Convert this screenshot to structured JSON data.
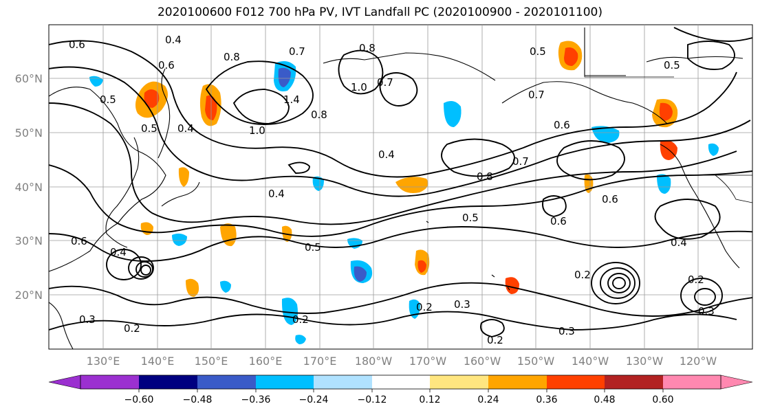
{
  "title": "2020100600 F012 700 hPa PV, IVT Landfall PC (2020100900 - 2020101100)",
  "lat_labels": [
    "60°N",
    "50°N",
    "40°N",
    "30°N",
    "20°N"
  ],
  "lon_labels": [
    "130°E",
    "140°E",
    "150°E",
    "160°E",
    "170°E",
    "180°W",
    "170°W",
    "160°W",
    "150°W",
    "140°W",
    "130°W",
    "120°W"
  ],
  "colorbar": {
    "colors": [
      "#9b30d0",
      "#000080",
      "#3a5bc8",
      "#00bfff",
      "#b0e2ff",
      "#ffffff",
      "#ffe680",
      "#ffa500",
      "#ff4000",
      "#b22222",
      "#ff88b0"
    ],
    "tick_labels": [
      "−0.60",
      "−0.48",
      "−0.36",
      "−0.24",
      "−0.12",
      "0.12",
      "0.24",
      "0.36",
      "0.48",
      "0.60"
    ]
  },
  "pv_contour_labels": [
    "0.4",
    "0.6",
    "0.8",
    "0.7",
    "0.8",
    "0.5",
    "0.6",
    "0.5",
    "0.4",
    "1.0",
    "1.4",
    "0.8",
    "1.0",
    "0.7",
    "0.5",
    "0.7",
    "0.6",
    "0.7",
    "0.4",
    "0.5",
    "0.6",
    "0.6",
    "0.4",
    "0.5",
    "0.8",
    "0.5",
    "0.6",
    "0.4",
    "0.2",
    "0.3",
    "0.2",
    "0.2",
    "0.3",
    "0.2",
    "0.3",
    "0.2",
    "0.3",
    "0.2",
    "0.4"
  ],
  "colors": {
    "land_lines": "#000000",
    "grid": "#9a9a9a",
    "axis_labels": "#808080"
  }
}
